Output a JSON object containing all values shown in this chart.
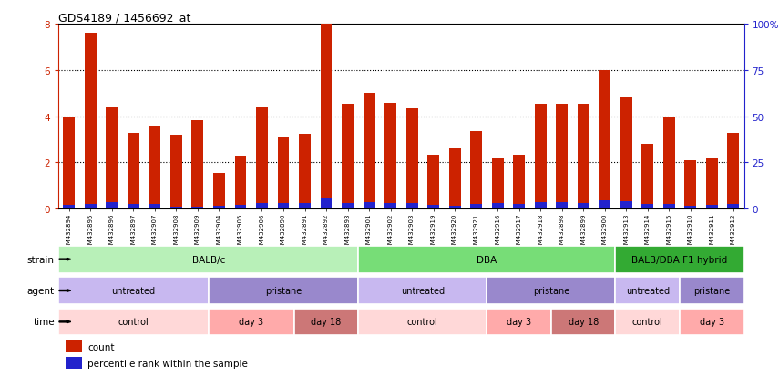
{
  "title": "GDS4189 / 1456692_at",
  "samples": [
    "GSM432894",
    "GSM432895",
    "GSM432896",
    "GSM432897",
    "GSM432907",
    "GSM432908",
    "GSM432909",
    "GSM432904",
    "GSM432905",
    "GSM432906",
    "GSM432890",
    "GSM432891",
    "GSM432892",
    "GSM432893",
    "GSM432901",
    "GSM432902",
    "GSM432903",
    "GSM432919",
    "GSM432920",
    "GSM432921",
    "GSM432916",
    "GSM432917",
    "GSM432918",
    "GSM432898",
    "GSM432899",
    "GSM432900",
    "GSM432913",
    "GSM432914",
    "GSM432915",
    "GSM432910",
    "GSM432911",
    "GSM432912"
  ],
  "count_values": [
    4.0,
    7.6,
    4.4,
    3.3,
    3.6,
    3.2,
    3.85,
    1.55,
    2.3,
    4.4,
    3.1,
    3.25,
    8.0,
    4.55,
    5.0,
    4.6,
    4.35,
    2.35,
    2.6,
    3.35,
    2.2,
    2.35,
    4.55,
    4.55,
    4.55,
    6.0,
    4.85,
    2.8,
    4.0,
    2.1,
    2.2,
    3.3
  ],
  "percentile_values": [
    0.18,
    0.22,
    0.28,
    0.22,
    0.22,
    0.1,
    0.08,
    0.12,
    0.18,
    0.26,
    0.24,
    0.26,
    0.48,
    0.26,
    0.28,
    0.26,
    0.24,
    0.18,
    0.14,
    0.2,
    0.24,
    0.22,
    0.28,
    0.28,
    0.26,
    0.36,
    0.32,
    0.2,
    0.22,
    0.14,
    0.18,
    0.2
  ],
  "bar_color": "#cc2200",
  "percentile_color": "#2222cc",
  "ylim_left": [
    0,
    8
  ],
  "ylim_right": [
    0,
    100
  ],
  "yticks_left": [
    0,
    2,
    4,
    6,
    8
  ],
  "yticks_right": [
    0,
    25,
    50,
    75,
    100
  ],
  "bg_color": "#ffffff",
  "plot_bg_color": "#ffffff",
  "strain_groups": [
    {
      "label": "BALB/c",
      "start": 0,
      "end": 14,
      "color": "#b8f0b8"
    },
    {
      "label": "DBA",
      "start": 14,
      "end": 26,
      "color": "#77dd77"
    },
    {
      "label": "BALB/DBA F1 hybrid",
      "start": 26,
      "end": 32,
      "color": "#33aa33"
    }
  ],
  "agent_groups": [
    {
      "label": "untreated",
      "start": 0,
      "end": 7,
      "color": "#c8b8f0"
    },
    {
      "label": "pristane",
      "start": 7,
      "end": 14,
      "color": "#9988cc"
    },
    {
      "label": "untreated",
      "start": 14,
      "end": 20,
      "color": "#c8b8f0"
    },
    {
      "label": "pristane",
      "start": 20,
      "end": 26,
      "color": "#9988cc"
    },
    {
      "label": "untreated",
      "start": 26,
      "end": 29,
      "color": "#c8b8f0"
    },
    {
      "label": "pristane",
      "start": 29,
      "end": 32,
      "color": "#9988cc"
    }
  ],
  "time_groups": [
    {
      "label": "control",
      "start": 0,
      "end": 7,
      "color": "#ffd8d8"
    },
    {
      "label": "day 3",
      "start": 7,
      "end": 11,
      "color": "#ffaaaa"
    },
    {
      "label": "day 18",
      "start": 11,
      "end": 14,
      "color": "#cc7777"
    },
    {
      "label": "control",
      "start": 14,
      "end": 20,
      "color": "#ffd8d8"
    },
    {
      "label": "day 3",
      "start": 20,
      "end": 23,
      "color": "#ffaaaa"
    },
    {
      "label": "day 18",
      "start": 23,
      "end": 26,
      "color": "#cc7777"
    },
    {
      "label": "control",
      "start": 26,
      "end": 29,
      "color": "#ffd8d8"
    },
    {
      "label": "day 3",
      "start": 29,
      "end": 32,
      "color": "#ffaaaa"
    }
  ],
  "legend_count_label": "count",
  "legend_percentile_label": "percentile rank within the sample",
  "row_labels": [
    "strain",
    "agent",
    "time"
  ]
}
